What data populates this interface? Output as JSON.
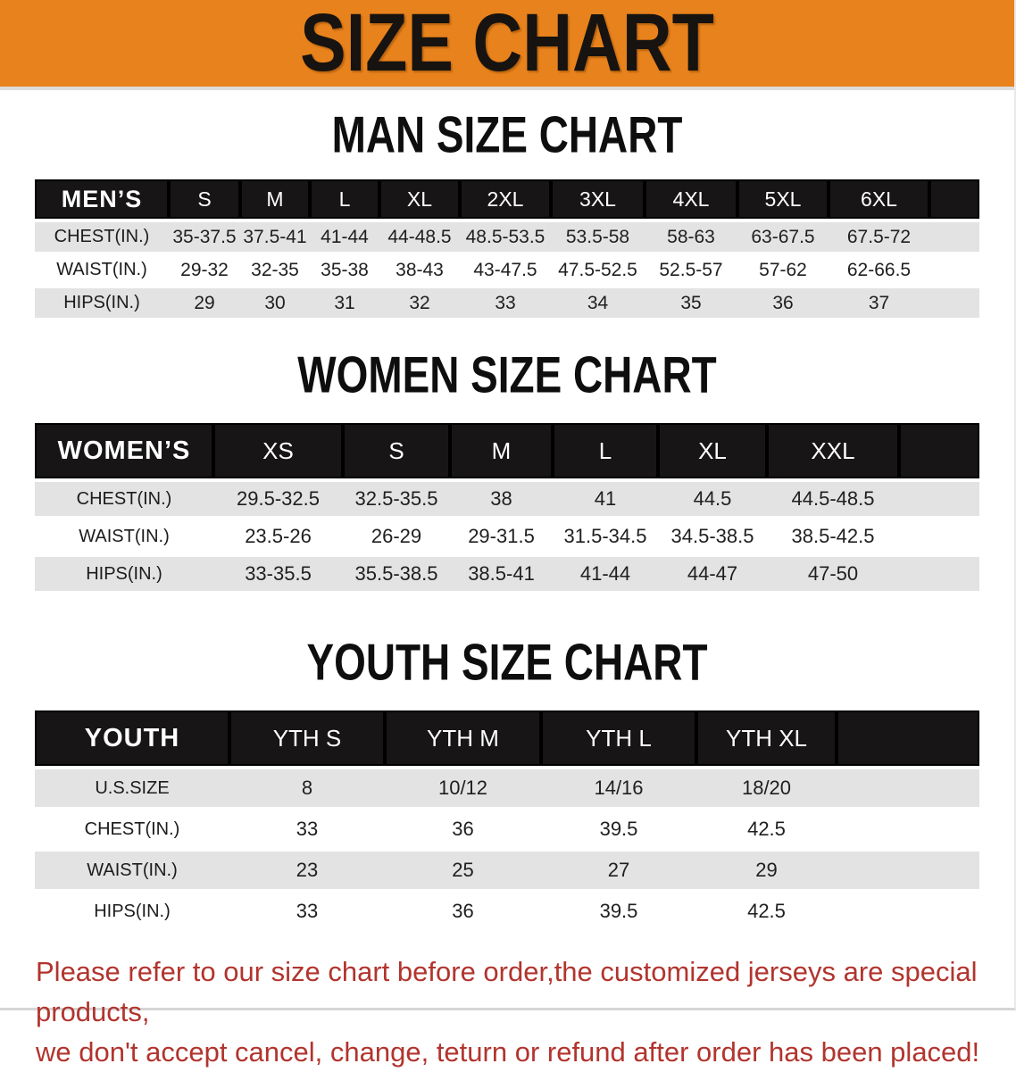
{
  "banner": {
    "title": "SIZE CHART"
  },
  "colors": {
    "banner_bg": "#e8821c",
    "table_header_bg": "#171515",
    "stripe_gray": "#e3e3e3",
    "note_red": "#b2342e"
  },
  "sections": [
    {
      "heading": "MAN SIZE CHART",
      "corner_label": "MEN’S",
      "columns": [
        "S",
        "M",
        "L",
        "XL",
        "2XL",
        "3XL",
        "4XL",
        "5XL",
        "6XL"
      ],
      "rows": [
        {
          "label": "CHEST(IN.)",
          "values": [
            "35-37.5",
            "37.5-41",
            "41-44",
            "44-48.5",
            "48.5-53.5",
            "53.5-58",
            "58-63",
            "63-67.5",
            "67.5-72"
          ]
        },
        {
          "label": "WAIST(IN.)",
          "values": [
            "29-32",
            "32-35",
            "35-38",
            "38-43",
            "43-47.5",
            "47.5-52.5",
            "52.5-57",
            "57-62",
            "62-66.5"
          ]
        },
        {
          "label": "HIPS(IN.)",
          "values": [
            "29",
            "30",
            "31",
            "32",
            "33",
            "34",
            "35",
            "36",
            "37"
          ]
        }
      ]
    },
    {
      "heading": "WOMEN SIZE CHART",
      "corner_label": "WOMEN’S",
      "columns": [
        "XS",
        "S",
        "M",
        "L",
        "XL",
        "XXL"
      ],
      "rows": [
        {
          "label": "CHEST(IN.)",
          "values": [
            "29.5-32.5",
            "32.5-35.5",
            "38",
            "41",
            "44.5",
            "44.5-48.5"
          ]
        },
        {
          "label": "WAIST(IN.)",
          "values": [
            "23.5-26",
            "26-29",
            "29-31.5",
            "31.5-34.5",
            "34.5-38.5",
            "38.5-42.5"
          ]
        },
        {
          "label": "HIPS(IN.)",
          "values": [
            "33-35.5",
            "35.5-38.5",
            "38.5-41",
            "41-44",
            "44-47",
            "47-50"
          ]
        }
      ]
    },
    {
      "heading": "YOUTH SIZE CHART",
      "corner_label": "YOUTH",
      "columns": [
        "YTH S",
        "YTH M",
        "YTH L",
        "YTH XL"
      ],
      "rows": [
        {
          "label": "U.S.SIZE",
          "values": [
            "8",
            "10/12",
            "14/16",
            "18/20"
          ]
        },
        {
          "label": "CHEST(IN.)",
          "values": [
            "33",
            "36",
            "39.5",
            "42.5"
          ]
        },
        {
          "label": "WAIST(IN.)",
          "values": [
            "23",
            "25",
            "27",
            "29"
          ]
        },
        {
          "label": "HIPS(IN.)",
          "values": [
            "33",
            "36",
            "39.5",
            "42.5"
          ]
        }
      ]
    }
  ],
  "note": {
    "line1": "Please refer to our size chart before order,the customized jerseys are special products,",
    "line2": "we don't accept cancel, change, teturn or refund after order has been placed!"
  }
}
